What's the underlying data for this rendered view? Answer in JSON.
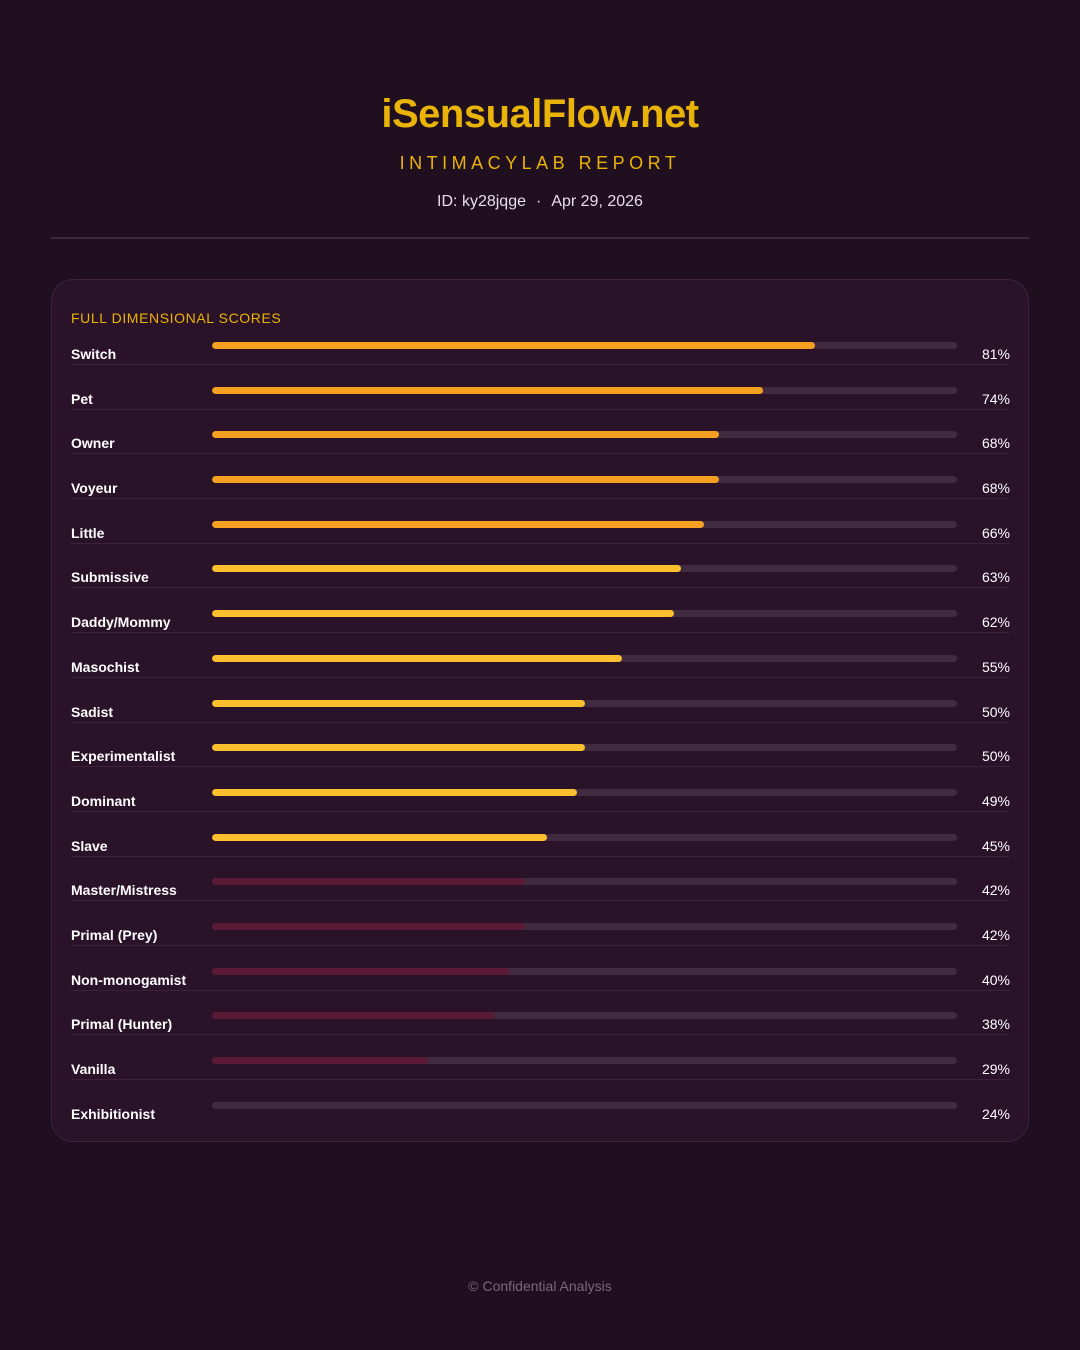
{
  "header": {
    "site_title": "iSensualFlow.net",
    "subtitle": "INTIMACYLAB REPORT",
    "id_text": "ID: ky28jqge",
    "separator": "·",
    "date_text": "Apr 29, 2026"
  },
  "card": {
    "title": "FULL DIMENSIONAL SCORES"
  },
  "colors": {
    "accent_gold": "#eab308",
    "bar_orange": "#f5a020",
    "bar_yellow": "#fcbf2e",
    "bar_maroon": "#5a1a35",
    "track": "#412b41",
    "background": "#1f0f1f",
    "card_bg": "#2a1228",
    "footer_text": "#7a6a78"
  },
  "scores": [
    {
      "label": "Switch",
      "value": 81,
      "value_text": "81%",
      "tier": "orange"
    },
    {
      "label": "Pet",
      "value": 74,
      "value_text": "74%",
      "tier": "orange"
    },
    {
      "label": "Owner",
      "value": 68,
      "value_text": "68%",
      "tier": "orange"
    },
    {
      "label": "Voyeur",
      "value": 68,
      "value_text": "68%",
      "tier": "orange"
    },
    {
      "label": "Little",
      "value": 66,
      "value_text": "66%",
      "tier": "orange"
    },
    {
      "label": "Submissive",
      "value": 63,
      "value_text": "63%",
      "tier": "yellow"
    },
    {
      "label": "Daddy/Mommy",
      "value": 62,
      "value_text": "62%",
      "tier": "yellow"
    },
    {
      "label": "Masochist",
      "value": 55,
      "value_text": "55%",
      "tier": "yellow"
    },
    {
      "label": "Sadist",
      "value": 50,
      "value_text": "50%",
      "tier": "yellow"
    },
    {
      "label": "Experimentalist",
      "value": 50,
      "value_text": "50%",
      "tier": "yellow"
    },
    {
      "label": "Dominant",
      "value": 49,
      "value_text": "49%",
      "tier": "yellow"
    },
    {
      "label": "Slave",
      "value": 45,
      "value_text": "45%",
      "tier": "yellow"
    },
    {
      "label": "Master/Mistress",
      "value": 42,
      "value_text": "42%",
      "tier": "maroon"
    },
    {
      "label": "Primal (Prey)",
      "value": 42,
      "value_text": "42%",
      "tier": "maroon"
    },
    {
      "label": "Non-monogamist",
      "value": 40,
      "value_text": "40%",
      "tier": "maroon"
    },
    {
      "label": "Primal (Hunter)",
      "value": 38,
      "value_text": "38%",
      "tier": "maroon"
    },
    {
      "label": "Vanilla",
      "value": 29,
      "value_text": "29%",
      "tier": "maroon"
    },
    {
      "label": "Exhibitionist",
      "value": 24,
      "value_text": "24%",
      "tier": "faint"
    }
  ],
  "footer": {
    "text": "© Confidential Analysis"
  }
}
